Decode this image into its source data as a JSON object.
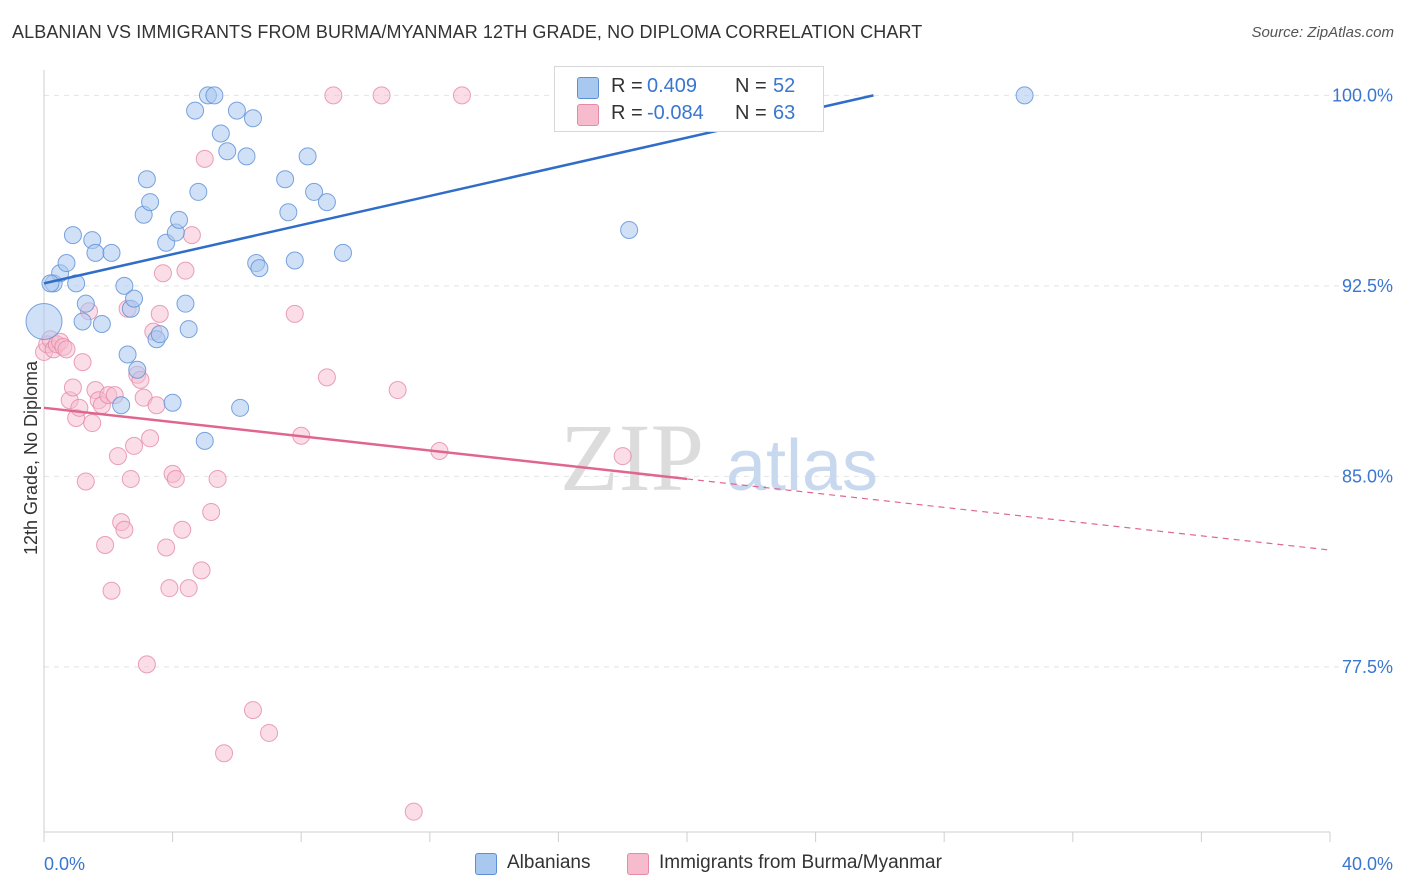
{
  "title": "ALBANIAN VS IMMIGRANTS FROM BURMA/MYANMAR 12TH GRADE, NO DIPLOMA CORRELATION CHART",
  "source": "Source: ZipAtlas.com",
  "watermark": {
    "zip": "ZIP",
    "atlas": "atlas"
  },
  "legend": {
    "rows": [
      {
        "r_label": "R =",
        "r_value": "0.409",
        "n_label": "N =",
        "n_value": "52"
      },
      {
        "r_label": "R =",
        "r_value": "-0.084",
        "n_label": "N =",
        "n_value": "63"
      }
    ]
  },
  "bottom_legend": [
    "Albanians",
    "Immigrants from Burma/Myanmar"
  ],
  "colors": {
    "blue_fill": "#a9c8f0",
    "blue_stroke": "#5b8fd6",
    "blue_line": "#2f6dc9",
    "pink_fill": "#f6bccd",
    "pink_stroke": "#e58aa7",
    "pink_line": "#e0668f",
    "tick_label": "#3a76d0",
    "grid": "#e4e4e4"
  },
  "chart_data": {
    "type": "scatter",
    "title": "ALBANIAN VS IMMIGRANTS FROM BURMA/MYANMAR 12TH GRADE, NO DIPLOMA CORRELATION CHART",
    "xlabel": "",
    "ylabel": "12th Grade, No Diploma",
    "xlim": [
      0,
      40
    ],
    "ylim": [
      71,
      101
    ],
    "x_tick_labels": [
      "0.0%",
      "40.0%"
    ],
    "y_ticks": [
      {
        "value": 77.5,
        "label": "77.5%"
      },
      {
        "value": 85.0,
        "label": "85.0%"
      },
      {
        "value": 92.5,
        "label": "92.5%"
      },
      {
        "value": 100.0,
        "label": "100.0%"
      }
    ],
    "grid": true,
    "legend_position": "top-center",
    "series": [
      {
        "name": "Albanians",
        "color": "#a9c8f0",
        "r": 0.409,
        "n": 52,
        "trend": {
          "x": [
            0.0,
            25.8
          ],
          "y": [
            92.6,
            100.0
          ]
        },
        "points": [
          [
            0.0,
            91.1
          ],
          [
            0.3,
            92.6
          ],
          [
            0.5,
            93.0
          ],
          [
            0.7,
            93.4
          ],
          [
            0.9,
            94.5
          ],
          [
            1.0,
            92.6
          ],
          [
            1.2,
            91.1
          ],
          [
            1.3,
            91.8
          ],
          [
            1.5,
            94.3
          ],
          [
            1.6,
            93.8
          ],
          [
            1.8,
            91.0
          ],
          [
            2.1,
            93.8
          ],
          [
            2.4,
            87.8
          ],
          [
            2.5,
            92.5
          ],
          [
            2.6,
            89.8
          ],
          [
            2.7,
            91.6
          ],
          [
            2.8,
            92.0
          ],
          [
            2.9,
            89.2
          ],
          [
            3.1,
            95.3
          ],
          [
            3.2,
            96.7
          ],
          [
            3.3,
            95.8
          ],
          [
            3.5,
            90.4
          ],
          [
            3.6,
            90.6
          ],
          [
            3.8,
            94.2
          ],
          [
            4.0,
            87.9
          ],
          [
            4.1,
            94.6
          ],
          [
            4.2,
            95.1
          ],
          [
            4.4,
            91.8
          ],
          [
            4.5,
            90.8
          ],
          [
            4.7,
            99.4
          ],
          [
            4.8,
            96.2
          ],
          [
            5.0,
            86.4
          ],
          [
            5.1,
            100.0
          ],
          [
            5.3,
            100.0
          ],
          [
            5.5,
            98.5
          ],
          [
            5.7,
            97.8
          ],
          [
            6.0,
            99.4
          ],
          [
            6.1,
            87.7
          ],
          [
            6.3,
            97.6
          ],
          [
            6.5,
            99.1
          ],
          [
            6.6,
            93.4
          ],
          [
            6.7,
            93.2
          ],
          [
            7.5,
            96.7
          ],
          [
            7.6,
            95.4
          ],
          [
            7.8,
            93.5
          ],
          [
            8.2,
            97.6
          ],
          [
            8.4,
            96.2
          ],
          [
            8.8,
            95.8
          ],
          [
            9.3,
            93.8
          ],
          [
            18.2,
            94.7
          ],
          [
            30.5,
            100.0
          ],
          [
            0.2,
            92.6
          ]
        ]
      },
      {
        "name": "Immigrants from Burma/Myanmar",
        "color": "#f6bccd",
        "r": -0.084,
        "n": 63,
        "trend": {
          "x": [
            0.0,
            20.0
          ],
          "y": [
            87.7,
            84.9
          ]
        },
        "trend_extension": {
          "x": [
            20.0,
            40.0
          ],
          "y": [
            84.9,
            82.1
          ]
        },
        "points": [
          [
            0.0,
            89.9
          ],
          [
            0.1,
            90.2
          ],
          [
            0.2,
            90.4
          ],
          [
            0.3,
            90.0
          ],
          [
            0.4,
            90.2
          ],
          [
            0.5,
            90.3
          ],
          [
            0.6,
            90.1
          ],
          [
            0.7,
            90.0
          ],
          [
            0.8,
            88.0
          ],
          [
            0.9,
            88.5
          ],
          [
            1.0,
            87.3
          ],
          [
            1.1,
            87.7
          ],
          [
            1.2,
            89.5
          ],
          [
            1.3,
            84.8
          ],
          [
            1.4,
            91.5
          ],
          [
            1.5,
            87.1
          ],
          [
            1.6,
            88.4
          ],
          [
            1.7,
            88.0
          ],
          [
            1.8,
            87.8
          ],
          [
            1.9,
            82.3
          ],
          [
            2.0,
            88.2
          ],
          [
            2.1,
            80.5
          ],
          [
            2.2,
            88.2
          ],
          [
            2.3,
            85.8
          ],
          [
            2.4,
            83.2
          ],
          [
            2.5,
            82.9
          ],
          [
            2.6,
            91.6
          ],
          [
            2.7,
            84.9
          ],
          [
            2.8,
            86.2
          ],
          [
            2.9,
            89.0
          ],
          [
            3.0,
            88.8
          ],
          [
            3.1,
            88.1
          ],
          [
            3.2,
            77.6
          ],
          [
            3.3,
            86.5
          ],
          [
            3.4,
            90.7
          ],
          [
            3.5,
            87.8
          ],
          [
            3.6,
            91.4
          ],
          [
            3.7,
            93.0
          ],
          [
            3.8,
            82.2
          ],
          [
            3.9,
            80.6
          ],
          [
            4.0,
            85.1
          ],
          [
            4.1,
            84.9
          ],
          [
            4.3,
            82.9
          ],
          [
            4.4,
            93.1
          ],
          [
            4.5,
            80.6
          ],
          [
            4.6,
            94.5
          ],
          [
            4.9,
            81.3
          ],
          [
            5.0,
            97.5
          ],
          [
            5.2,
            83.6
          ],
          [
            5.4,
            84.9
          ],
          [
            5.6,
            74.1
          ],
          [
            6.5,
            75.8
          ],
          [
            7.0,
            74.9
          ],
          [
            7.8,
            91.4
          ],
          [
            8.0,
            86.6
          ],
          [
            8.8,
            88.9
          ],
          [
            9.0,
            100.0
          ],
          [
            10.5,
            100.0
          ],
          [
            11.0,
            88.4
          ],
          [
            11.5,
            71.8
          ],
          [
            12.3,
            86.0
          ],
          [
            13.0,
            100.0
          ],
          [
            18.0,
            85.8
          ]
        ]
      }
    ]
  }
}
